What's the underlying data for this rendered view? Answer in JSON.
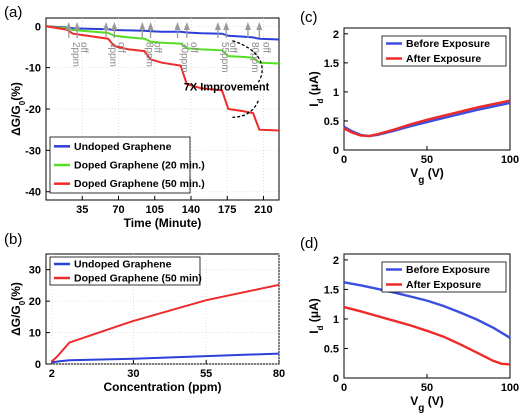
{
  "panels": {
    "a": {
      "label": "(a)",
      "chart_data": {
        "type": "line",
        "xlabel": "Time (Minute)",
        "ylabel_main": "ΔG/G",
        "ylabel_sub": "0",
        "ylabel_unit": "(%)",
        "xlim": [
          0,
          225
        ],
        "ylim": [
          -42,
          2
        ],
        "xticks": [
          35,
          70,
          105,
          140,
          175,
          210
        ],
        "yticks": [
          0,
          -10,
          -20,
          -30,
          -40
        ],
        "grid": true,
        "legend_position": "bottom-left",
        "series": [
          {
            "name": "Undoped Graphene",
            "color": "#2b3fd9",
            "x": [
              0,
              20,
              26,
              40,
              60,
              66,
              80,
              95,
              101,
              112,
              130,
              136,
              150,
              170,
              176,
              190,
              200,
              206,
              225
            ],
            "y": [
              0,
              -0.3,
              -0.5,
              -0.6,
              -0.7,
              -0.9,
              -1.0,
              -1.1,
              -1.2,
              -1.3,
              -1.3,
              -1.5,
              -1.7,
              -1.8,
              -2.3,
              -2.5,
              -2.7,
              -3.0,
              -3.2
            ]
          },
          {
            "name": "Doped Graphene (20 min.)",
            "color": "#55dd22",
            "x": [
              0,
              20,
              26,
              40,
              60,
              66,
              80,
              95,
              101,
              112,
              130,
              136,
              150,
              170,
              176,
              190,
              200,
              206,
              225
            ],
            "y": [
              0,
              -0.5,
              -0.9,
              -1.2,
              -1.6,
              -2.3,
              -2.7,
              -3.0,
              -3.7,
              -4.0,
              -4.2,
              -5.3,
              -5.6,
              -5.8,
              -7.2,
              -7.4,
              -7.6,
              -8.8,
              -9.0
            ]
          },
          {
            "name": "Doped Graphene (50 min.)",
            "color": "#ee2a2a",
            "x": [
              0,
              20,
              26,
              40,
              60,
              66,
              80,
              95,
              101,
              112,
              130,
              136,
              150,
              170,
              176,
              190,
              200,
              206,
              225
            ],
            "y": [
              0,
              -0.8,
              -1.8,
              -2.3,
              -3.0,
              -4.8,
              -5.6,
              -6.0,
              -8.0,
              -8.8,
              -9.5,
              -14.0,
              -15.0,
              -15.5,
              -20.0,
              -20.5,
              -21.0,
              -25.0,
              -25.2
            ]
          }
        ],
        "annotations": [
          {
            "text": "2ppm",
            "x": 22
          },
          {
            "text": "off",
            "x": 30
          },
          {
            "text": "4ppm",
            "x": 58
          },
          {
            "text": "off",
            "x": 66
          },
          {
            "text": "8ppm",
            "x": 93
          },
          {
            "text": "off",
            "x": 101
          },
          {
            "text": "30ppm",
            "x": 127
          },
          {
            "text": "off",
            "x": 136
          },
          {
            "text": "55ppm",
            "x": 166
          },
          {
            "text": "off",
            "x": 174
          },
          {
            "text": "80ppm",
            "x": 195
          },
          {
            "text": "off",
            "x": 206
          }
        ],
        "callout": "7X Improvement"
      }
    },
    "b": {
      "label": "(b)",
      "chart_data": {
        "type": "line",
        "xlabel": "Concentration (ppm)",
        "ylabel_main": "ΔG/G",
        "ylabel_sub": "0",
        "ylabel_unit": "(%)",
        "xlim": [
          0,
          80
        ],
        "ylim": [
          0,
          35
        ],
        "xticks": [
          2,
          30,
          55,
          80
        ],
        "yticks": [
          0,
          10,
          20,
          30
        ],
        "grid": true,
        "legend_position": "top-left",
        "series": [
          {
            "name": "Undoped Graphene",
            "color": "#2b3fd9",
            "x": [
              2,
              4,
              8,
              30,
              55,
              80
            ],
            "y": [
              0.5,
              0.8,
              1.2,
              1.7,
              2.5,
              3.3
            ]
          },
          {
            "name": "Doped Graphene (50 min)",
            "color": "#ee2a2a",
            "x": [
              2,
              4,
              8,
              30,
              55,
              80
            ],
            "y": [
              0.8,
              2.5,
              6.8,
              13.7,
              20.3,
              25.2
            ]
          }
        ]
      }
    },
    "c": {
      "label": "(c)",
      "chart_data": {
        "type": "line",
        "xlabel_main": "V",
        "xlabel_sub": "g",
        "xlabel_unit": " (V)",
        "ylabel_main": "I",
        "ylabel_sub": "d",
        "ylabel_unit": " (μA)",
        "xlim": [
          0,
          100
        ],
        "ylim": [
          0,
          2.1
        ],
        "xticks": [
          0,
          50,
          100
        ],
        "yticks": [
          0,
          0.5,
          1,
          1.5,
          2
        ],
        "grid": false,
        "legend_position": "top-right",
        "series": [
          {
            "name": "Before Exposure",
            "color": "#3a4fe0",
            "x": [
              0,
              5,
              10,
              15,
              20,
              30,
              40,
              50,
              60,
              70,
              80,
              90,
              100
            ],
            "y": [
              0.4,
              0.32,
              0.26,
              0.24,
              0.26,
              0.33,
              0.41,
              0.48,
              0.55,
              0.62,
              0.69,
              0.75,
              0.81
            ]
          },
          {
            "name": "After Exposure",
            "color": "#ee2a2a",
            "x": [
              0,
              5,
              10,
              15,
              20,
              30,
              40,
              50,
              60,
              70,
              80,
              90,
              100
            ],
            "y": [
              0.37,
              0.3,
              0.25,
              0.24,
              0.27,
              0.35,
              0.44,
              0.52,
              0.59,
              0.66,
              0.73,
              0.79,
              0.85
            ]
          }
        ]
      }
    },
    "d": {
      "label": "(d)",
      "chart_data": {
        "type": "line",
        "xlabel_main": "V",
        "xlabel_sub": "g",
        "xlabel_unit": " (V)",
        "ylabel_main": "I",
        "ylabel_sub": "d",
        "ylabel_unit": " (μA)",
        "xlim": [
          0,
          100
        ],
        "ylim": [
          0,
          2.1
        ],
        "xticks": [
          0,
          50,
          100
        ],
        "yticks": [
          0,
          0.5,
          1,
          1.5,
          2
        ],
        "grid": false,
        "legend_position": "top-right",
        "series": [
          {
            "name": "Before Exposure",
            "color": "#3a4fe0",
            "x": [
              0,
              10,
              20,
              30,
              40,
              50,
              60,
              70,
              80,
              90,
              100
            ],
            "y": [
              1.62,
              1.57,
              1.51,
              1.45,
              1.38,
              1.31,
              1.22,
              1.11,
              0.99,
              0.85,
              0.68
            ]
          },
          {
            "name": "After Exposure",
            "color": "#ee2a2a",
            "x": [
              0,
              10,
              20,
              30,
              40,
              50,
              60,
              70,
              80,
              90,
              95,
              100
            ],
            "y": [
              1.2,
              1.13,
              1.05,
              0.97,
              0.89,
              0.8,
              0.7,
              0.57,
              0.43,
              0.29,
              0.24,
              0.23
            ]
          }
        ]
      }
    }
  }
}
